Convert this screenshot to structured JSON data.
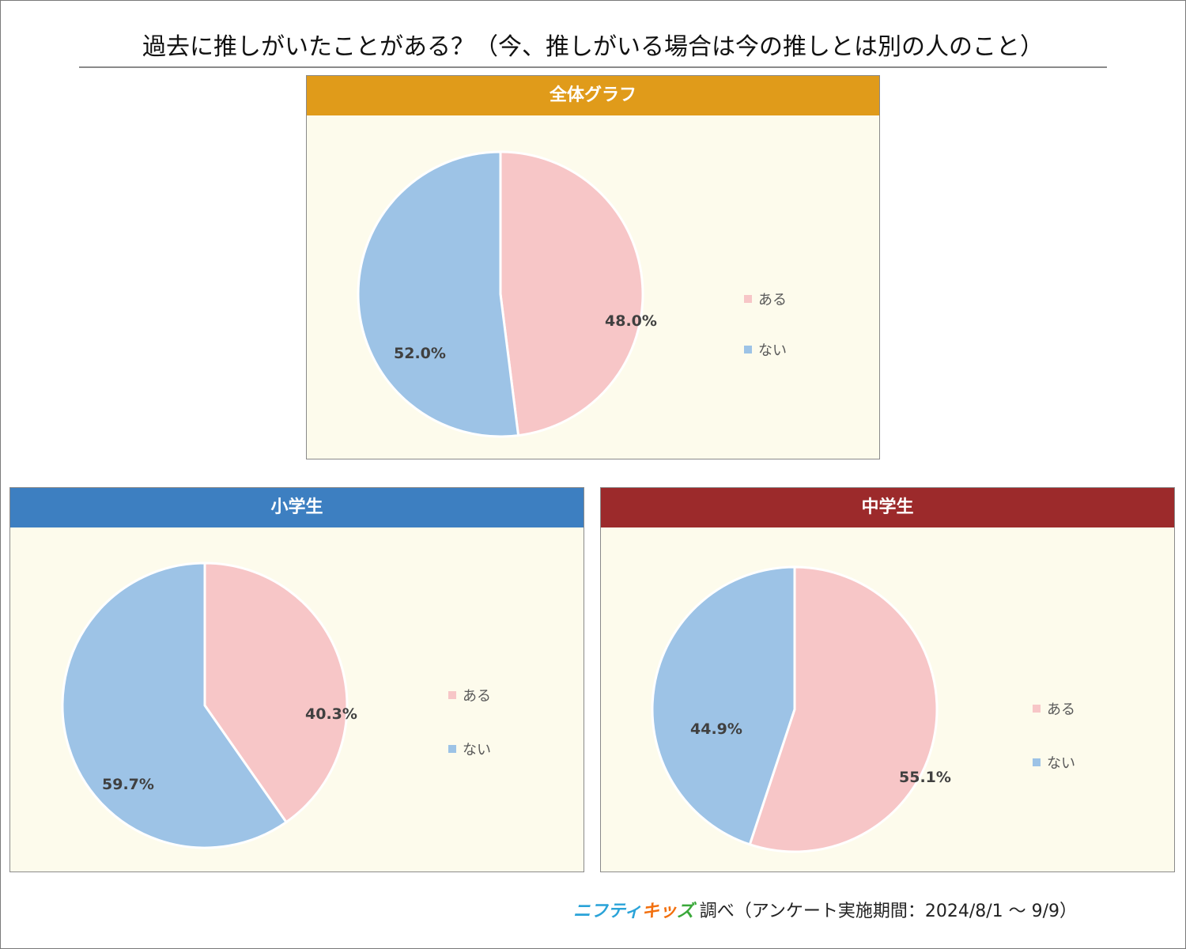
{
  "title": "過去に推しがいたことがある？（今、推しがいる場合は今の推しとは別の人のこと）",
  "colors": {
    "aru": "#f7c6c7",
    "nai": "#9dc3e6",
    "overall_header": "#e09b1a",
    "elementary_header": "#3d7fc1",
    "junior_high_header": "#9c2a2b",
    "panel_bg": "#fdfbec"
  },
  "chart_data": [
    {
      "type": "pie",
      "title": "全体グラフ",
      "categories": [
        "ある",
        "ない"
      ],
      "values": [
        48.0,
        52.0
      ],
      "labels": [
        "48.0%",
        "52.0%"
      ],
      "legend": [
        "ある",
        "ない"
      ],
      "legend_position": "right"
    },
    {
      "type": "pie",
      "title": "小学生",
      "categories": [
        "ある",
        "ない"
      ],
      "values": [
        40.3,
        59.7
      ],
      "labels": [
        "40.3%",
        "59.7%"
      ],
      "legend": [
        "ある",
        "ない"
      ],
      "legend_position": "right"
    },
    {
      "type": "pie",
      "title": "中学生",
      "categories": [
        "ある",
        "ない"
      ],
      "values": [
        55.1,
        44.9
      ],
      "labels": [
        "55.1%",
        "44.9%"
      ],
      "legend": [
        "ある",
        "ない"
      ],
      "legend_position": "right"
    }
  ],
  "footer": {
    "brand_part1": "ニフティ",
    "brand_part2": "キッ",
    "brand_part3": "ズ",
    "text": "調べ（アンケート実施期間：2024/8/1 ～ 9/9）"
  }
}
